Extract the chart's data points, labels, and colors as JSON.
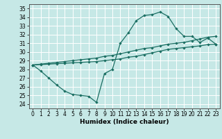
{
  "xlabel": "Humidex (Indice chaleur)",
  "bg_color": "#c6e8e6",
  "grid_color": "#ffffff",
  "line_color": "#1a6e62",
  "xlim": [
    -0.5,
    23.5
  ],
  "ylim": [
    23.5,
    35.5
  ],
  "yticks": [
    24,
    25,
    26,
    27,
    28,
    29,
    30,
    31,
    32,
    33,
    34,
    35
  ],
  "xticks": [
    0,
    1,
    2,
    3,
    4,
    5,
    6,
    7,
    8,
    9,
    10,
    11,
    12,
    13,
    14,
    15,
    16,
    17,
    18,
    19,
    20,
    21,
    22,
    23
  ],
  "line1_x": [
    0,
    1,
    2,
    3,
    4,
    5,
    6,
    7,
    8,
    9,
    10,
    11,
    12,
    13,
    14,
    15,
    16,
    17,
    18,
    19,
    20,
    21,
    22,
    23
  ],
  "line1_y": [
    28.5,
    27.8,
    27.0,
    26.2,
    25.5,
    25.1,
    25.0,
    24.9,
    24.2,
    27.5,
    28.0,
    31.0,
    32.2,
    33.6,
    34.2,
    34.3,
    34.6,
    34.1,
    32.7,
    31.8,
    31.8,
    31.1,
    31.6,
    30.9
  ],
  "line2_x": [
    0,
    1,
    2,
    3,
    4,
    5,
    6,
    7,
    8,
    9,
    10,
    11,
    12,
    13,
    14,
    15,
    16,
    17,
    18,
    19,
    20,
    21,
    22,
    23
  ],
  "line2_y": [
    28.5,
    28.6,
    28.7,
    28.8,
    28.9,
    29.0,
    29.1,
    29.2,
    29.3,
    29.5,
    29.6,
    29.8,
    30.0,
    30.2,
    30.4,
    30.5,
    30.7,
    30.9,
    31.0,
    31.1,
    31.3,
    31.5,
    31.7,
    31.8
  ],
  "line3_x": [
    0,
    1,
    2,
    3,
    4,
    5,
    6,
    7,
    8,
    9,
    10,
    11,
    12,
    13,
    14,
    15,
    16,
    17,
    18,
    19,
    20,
    21,
    22,
    23
  ],
  "line3_y": [
    28.5,
    28.55,
    28.6,
    28.65,
    28.7,
    28.75,
    28.8,
    28.85,
    28.9,
    29.0,
    29.1,
    29.2,
    29.4,
    29.5,
    29.7,
    29.9,
    30.1,
    30.3,
    30.4,
    30.5,
    30.6,
    30.7,
    30.85,
    30.9
  ],
  "marker_size": 2.2,
  "line_width": 0.9,
  "font_size_ticks": 5.5,
  "font_size_xlabel": 6.5
}
